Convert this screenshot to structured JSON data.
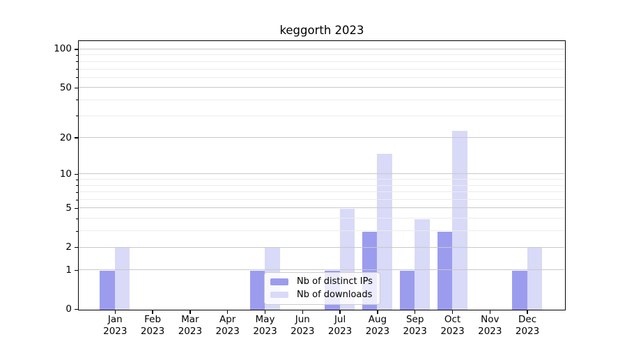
{
  "chart_data": {
    "type": "bar",
    "title": "keggorth 2023",
    "categories": [
      "Jan 2023",
      "Feb 2023",
      "Mar 2023",
      "Apr 2023",
      "May 2023",
      "Jun 2023",
      "Jul 2023",
      "Aug 2023",
      "Sep 2023",
      "Oct 2023",
      "Nov 2023",
      "Dec 2023"
    ],
    "series": [
      {
        "name": "Nb of distinct IPs",
        "slug": "distinct-ips",
        "color": "#9c9cef",
        "values": [
          1,
          0,
          0,
          0,
          1,
          0,
          1,
          3,
          1,
          3,
          0,
          1
        ]
      },
      {
        "name": "Nb of downloads",
        "slug": "downloads",
        "color": "#d9d9f8",
        "values": [
          2,
          0,
          0,
          0,
          2,
          0,
          5,
          15,
          4,
          23,
          0,
          2
        ]
      }
    ],
    "xlabel": "",
    "ylabel": "",
    "yscale": "log1p",
    "ylim": [
      0,
      115.4
    ],
    "yticks": [
      0,
      1,
      2,
      5,
      10,
      20,
      50,
      100
    ],
    "minor_gridlines": [
      3,
      4,
      6,
      7,
      8,
      9,
      30,
      40,
      60,
      70,
      80,
      90
    ],
    "grid": true,
    "legend_position": "lower center"
  },
  "colors": {
    "background": "#ffffff",
    "spine": "#000000",
    "grid_major": "#c8c8c8",
    "grid_minor": "#ececec",
    "legend_border": "#cccccc"
  }
}
